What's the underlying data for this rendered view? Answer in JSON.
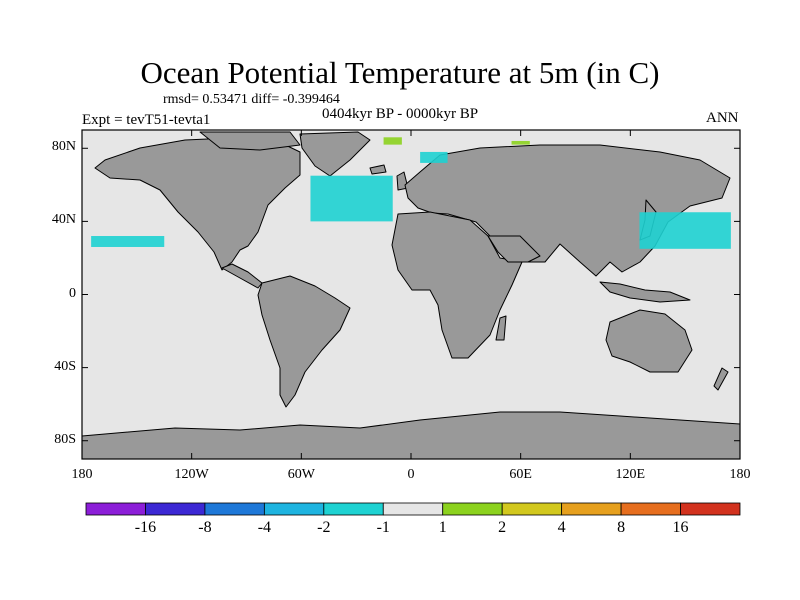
{
  "title": "Ocean Potential Temperature at 5m (in C)",
  "stats": "rmsd= 0.53471 diff= -0.399464",
  "period": "0404kyr BP - 0000kyr BP",
  "experiment": "Expt = tevT51-tevta1",
  "season": "ANN",
  "map": {
    "projection": "cylindrical-equidistant",
    "lon_range": [
      -180,
      180
    ],
    "lat_range": [
      -90,
      90
    ],
    "land_color": "#999999",
    "ocean_neutral_color": "#e6e6e6",
    "coast_color": "#000000"
  },
  "axes": {
    "y_ticks": [
      {
        "value": 80,
        "label": "80N"
      },
      {
        "value": 40,
        "label": "40N"
      },
      {
        "value": 0,
        "label": "0"
      },
      {
        "value": -40,
        "label": "40S"
      },
      {
        "value": -80,
        "label": "80S"
      }
    ],
    "x_ticks": [
      {
        "value": -180,
        "label": "180"
      },
      {
        "value": -120,
        "label": "120W"
      },
      {
        "value": -60,
        "label": "60W"
      },
      {
        "value": 0,
        "label": "0"
      },
      {
        "value": 60,
        "label": "60E"
      },
      {
        "value": 120,
        "label": "120E"
      },
      {
        "value": 180,
        "label": "180"
      }
    ]
  },
  "colorbar": {
    "colors": [
      "#8c1ed8",
      "#3c28d4",
      "#1e78d8",
      "#1eb4e0",
      "#1ed2d2",
      "#e6e6e6",
      "#8cd21e",
      "#d2c81e",
      "#e6a01e",
      "#e66e1e",
      "#d2321e"
    ],
    "labels": [
      "-16",
      "-8",
      "-4",
      "-2",
      "-1",
      "1",
      "2",
      "4",
      "8",
      "16"
    ]
  },
  "anomaly_regions": [
    {
      "name": "north-atlantic",
      "category": "-1 to -2",
      "color": "#1ed2d2",
      "lon_range": [
        -55,
        -10
      ],
      "lat_range": [
        40,
        65
      ]
    },
    {
      "name": "barents-sea",
      "category": "-1 to -2",
      "color": "#1ed2d2",
      "lon_range": [
        5,
        20
      ],
      "lat_range": [
        72,
        78
      ]
    },
    {
      "name": "kuroshio",
      "category": "-1 to -2",
      "color": "#1ed2d2",
      "lon_range": [
        125,
        175
      ],
      "lat_range": [
        25,
        45
      ]
    },
    {
      "name": "north-pacific-east",
      "category": "-1 to -2",
      "color": "#1ed2d2",
      "lon_range": [
        -175,
        -135
      ],
      "lat_range": [
        26,
        32
      ]
    },
    {
      "name": "arctic-greenland",
      "category": "1 to 2",
      "color": "#8cd21e",
      "lon_range": [
        -15,
        -5
      ],
      "lat_range": [
        82,
        86
      ]
    },
    {
      "name": "arctic-barents",
      "category": "1 to 2",
      "color": "#8cd21e",
      "lon_range": [
        55,
        65
      ],
      "lat_range": [
        82,
        84
      ]
    }
  ]
}
